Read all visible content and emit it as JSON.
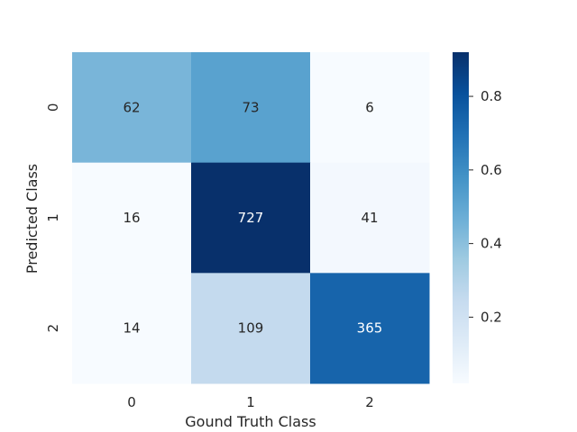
{
  "chart_data": {
    "type": "heatmap",
    "title": "",
    "xlabel": "Gound Truth Class",
    "ylabel": "Predicted Class",
    "x_categories": [
      "0",
      "1",
      "2"
    ],
    "y_categories": [
      "0",
      "1",
      "2"
    ],
    "values": [
      [
        62,
        73,
        6
      ],
      [
        16,
        727,
        41
      ],
      [
        14,
        109,
        365
      ]
    ],
    "color_values": [
      [
        0.44,
        0.52,
        0.02
      ],
      [
        0.02,
        0.92,
        0.04
      ],
      [
        0.02,
        0.25,
        0.74
      ]
    ],
    "colormap": "Blues",
    "colorbar": {
      "range": [
        0.02,
        0.92
      ],
      "ticks": [
        0.2,
        0.4,
        0.6,
        0.8
      ],
      "tick_labels": [
        "0.2",
        "0.4",
        "0.6",
        "0.8"
      ]
    },
    "grid": false,
    "legend": "colorbar-right"
  }
}
